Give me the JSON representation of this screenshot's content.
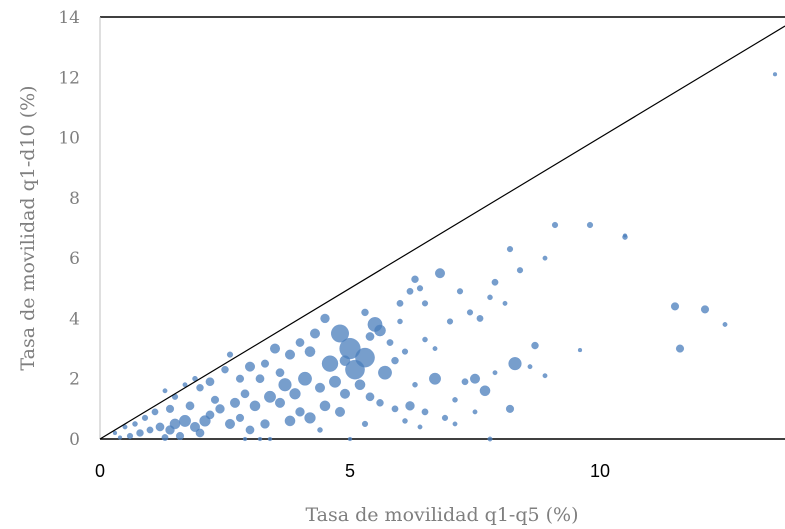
{
  "chart_data": {
    "type": "scatter",
    "title": "",
    "xlabel": "Tasa de movilidad q1-q5 (%)",
    "ylabel": "Tasa de movilidad q1-d10 (%)",
    "xlim": [
      0,
      13.7
    ],
    "ylim": [
      0,
      14
    ],
    "xticks": [
      0,
      5,
      10
    ],
    "yticks": [
      0,
      2,
      4,
      6,
      8,
      10,
      12,
      14
    ],
    "reference_line": {
      "from": [
        0,
        0
      ],
      "to": [
        13.7,
        13.7
      ]
    },
    "colors": {
      "marker": "#4a7ebb",
      "line": "#000000",
      "tick_y": "#7f7f7f",
      "tick_x": "#000000"
    },
    "series": [
      {
        "points": [
          [
            13.5,
            12.1,
            1.2
          ],
          [
            9.1,
            7.1,
            1.8
          ],
          [
            9.8,
            7.1,
            1.8
          ],
          [
            10.5,
            6.7,
            1.6
          ],
          [
            10.5,
            6.75,
            1.2
          ],
          [
            8.2,
            6.3,
            1.8
          ],
          [
            8.9,
            6.0,
            1.4
          ],
          [
            6.8,
            5.5,
            3.0
          ],
          [
            8.4,
            5.6,
            1.8
          ],
          [
            6.3,
            5.3,
            2.2
          ],
          [
            7.9,
            5.2,
            2.0
          ],
          [
            6.2,
            4.9,
            2.0
          ],
          [
            6.4,
            5.0,
            1.8
          ],
          [
            7.2,
            4.9,
            1.8
          ],
          [
            7.8,
            4.7,
            1.6
          ],
          [
            8.1,
            4.5,
            1.4
          ],
          [
            6.0,
            4.5,
            2.0
          ],
          [
            6.5,
            4.5,
            1.8
          ],
          [
            7.4,
            4.2,
            1.8
          ],
          [
            7.6,
            4.0,
            2.0
          ],
          [
            7.0,
            3.9,
            1.8
          ],
          [
            11.5,
            4.4,
            2.4
          ],
          [
            12.1,
            4.3,
            2.4
          ],
          [
            12.5,
            3.8,
            1.4
          ],
          [
            11.6,
            3.0,
            2.4
          ],
          [
            8.7,
            3.1,
            2.2
          ],
          [
            9.6,
            2.95,
            1.2
          ],
          [
            8.3,
            2.5,
            4.0
          ],
          [
            8.6,
            2.4,
            1.4
          ],
          [
            8.9,
            2.1,
            1.4
          ],
          [
            7.5,
            2.0,
            3.0
          ],
          [
            6.7,
            2.0,
            3.6
          ],
          [
            7.3,
            1.9,
            2.0
          ],
          [
            7.7,
            1.6,
            3.2
          ],
          [
            7.9,
            2.2,
            1.4
          ],
          [
            6.3,
            1.8,
            1.6
          ],
          [
            5.7,
            2.2,
            4.2
          ],
          [
            5.3,
            2.7,
            6.0
          ],
          [
            5.0,
            3.0,
            6.5
          ],
          [
            4.8,
            3.5,
            5.5
          ],
          [
            5.5,
            3.8,
            4.5
          ],
          [
            5.1,
            2.3,
            6.0
          ],
          [
            4.6,
            2.5,
            5.0
          ],
          [
            5.6,
            3.6,
            3.5
          ],
          [
            5.3,
            4.2,
            2.2
          ],
          [
            4.5,
            4.0,
            2.8
          ],
          [
            4.3,
            3.5,
            3.0
          ],
          [
            4.0,
            3.2,
            2.6
          ],
          [
            4.2,
            2.9,
            3.2
          ],
          [
            3.8,
            2.8,
            3.0
          ],
          [
            3.5,
            3.0,
            3.0
          ],
          [
            3.3,
            2.5,
            2.4
          ],
          [
            3.6,
            2.2,
            2.6
          ],
          [
            3.0,
            2.4,
            3.0
          ],
          [
            2.8,
            2.0,
            2.4
          ],
          [
            2.6,
            2.8,
            1.8
          ],
          [
            2.5,
            2.3,
            2.2
          ],
          [
            2.2,
            1.9,
            2.6
          ],
          [
            2.0,
            1.7,
            2.2
          ],
          [
            1.9,
            2.0,
            1.6
          ],
          [
            1.7,
            1.8,
            1.4
          ],
          [
            1.5,
            1.4,
            1.8
          ],
          [
            1.3,
            1.6,
            1.4
          ],
          [
            1.4,
            1.0,
            2.4
          ],
          [
            1.1,
            0.9,
            2.0
          ],
          [
            0.9,
            0.7,
            1.8
          ],
          [
            0.7,
            0.5,
            1.6
          ],
          [
            0.5,
            0.4,
            1.4
          ],
          [
            0.3,
            0.2,
            1.2
          ],
          [
            0.4,
            0.05,
            1.2
          ],
          [
            1.0,
            0.3,
            2.0
          ],
          [
            1.2,
            0.4,
            2.6
          ],
          [
            1.5,
            0.5,
            3.2
          ],
          [
            1.7,
            0.6,
            3.6
          ],
          [
            1.9,
            0.4,
            3.0
          ],
          [
            2.0,
            0.2,
            2.6
          ],
          [
            1.6,
            0.1,
            2.4
          ],
          [
            1.3,
            0.05,
            2.0
          ],
          [
            2.2,
            0.8,
            2.6
          ],
          [
            2.4,
            1.0,
            2.8
          ],
          [
            2.7,
            1.2,
            3.0
          ],
          [
            2.9,
            1.5,
            2.6
          ],
          [
            3.1,
            1.1,
            3.2
          ],
          [
            3.4,
            1.4,
            3.6
          ],
          [
            3.7,
            1.8,
            4.0
          ],
          [
            3.9,
            1.5,
            3.4
          ],
          [
            4.1,
            2.0,
            4.2
          ],
          [
            4.4,
            1.7,
            3.0
          ],
          [
            4.7,
            1.9,
            3.6
          ],
          [
            4.9,
            1.5,
            3.0
          ],
          [
            5.2,
            1.8,
            3.2
          ],
          [
            5.4,
            1.4,
            2.6
          ],
          [
            5.6,
            1.2,
            2.2
          ],
          [
            5.9,
            1.0,
            2.0
          ],
          [
            6.2,
            1.1,
            2.8
          ],
          [
            6.5,
            0.9,
            2.0
          ],
          [
            6.9,
            0.7,
            1.8
          ],
          [
            7.1,
            0.5,
            1.4
          ],
          [
            8.2,
            1.0,
            2.4
          ],
          [
            6.4,
            0.4,
            1.4
          ],
          [
            4.8,
            0.9,
            3.0
          ],
          [
            4.2,
            0.7,
            3.4
          ],
          [
            3.8,
            0.6,
            3.2
          ],
          [
            3.3,
            0.5,
            2.8
          ],
          [
            3.0,
            0.3,
            2.6
          ],
          [
            2.6,
            0.5,
            3.0
          ],
          [
            2.8,
            0.7,
            2.4
          ],
          [
            4.5,
            1.1,
            3.2
          ],
          [
            4.0,
            0.9,
            2.8
          ],
          [
            3.6,
            1.2,
            3.0
          ],
          [
            5.8,
            3.2,
            2.0
          ],
          [
            6.0,
            3.9,
            1.6
          ],
          [
            5.9,
            2.6,
            2.2
          ],
          [
            6.1,
            2.9,
            1.8
          ],
          [
            6.5,
            3.3,
            1.6
          ],
          [
            6.7,
            3.0,
            1.4
          ],
          [
            5.4,
            3.4,
            2.6
          ],
          [
            4.9,
            2.6,
            3.2
          ],
          [
            3.2,
            2.0,
            2.6
          ],
          [
            2.3,
            1.3,
            2.4
          ],
          [
            1.8,
            1.1,
            2.6
          ],
          [
            0.8,
            0.2,
            2.2
          ],
          [
            0.6,
            0.1,
            1.8
          ],
          [
            2.1,
            0.6,
            3.4
          ],
          [
            1.4,
            0.3,
            2.8
          ],
          [
            7.8,
            0.0,
            1.4
          ],
          [
            5.0,
            0.0,
            1.2
          ],
          [
            3.4,
            0.0,
            1.2
          ],
          [
            3.2,
            0.0,
            1.2
          ],
          [
            2.9,
            0.0,
            1.2
          ],
          [
            4.4,
            0.3,
            1.6
          ],
          [
            5.3,
            0.5,
            1.8
          ],
          [
            6.1,
            0.6,
            1.6
          ],
          [
            7.5,
            0.9,
            1.4
          ],
          [
            7.1,
            1.3,
            1.6
          ]
        ]
      }
    ]
  }
}
